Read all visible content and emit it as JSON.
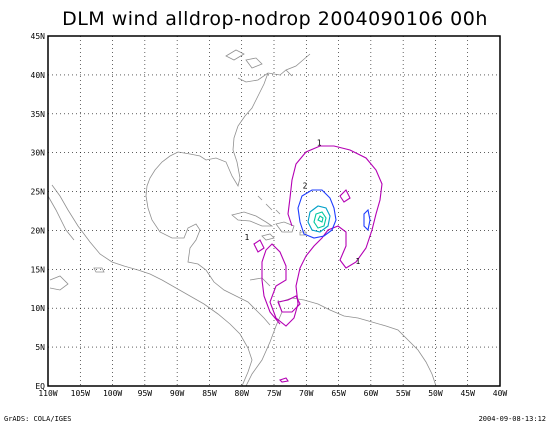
{
  "title": "DLM wind alldrop-nodrop 2004090106 00h",
  "footer": {
    "left": "GrADS: COLA/IGES",
    "right": "2004-09-08-13:12"
  },
  "axes": {
    "x_tick_labels": [
      "110W",
      "105W",
      "100W",
      "95W",
      "90W",
      "85W",
      "80W",
      "75W",
      "70W",
      "65W",
      "60W",
      "55W",
      "50W",
      "45W",
      "40W"
    ],
    "y_tick_labels": [
      "EQ",
      "5N",
      "10N",
      "15N",
      "20N",
      "25N",
      "30N",
      "35N",
      "40N",
      "45N"
    ],
    "lon_range": [
      -110,
      -40
    ],
    "lat_range": [
      0,
      45
    ]
  },
  "contour_labels": [
    {
      "text": "1",
      "lon": -68.0,
      "lat": 30.9,
      "color": "magenta"
    },
    {
      "text": "1",
      "lon": -79.2,
      "lat": 18.8,
      "color": "magenta"
    },
    {
      "text": "1",
      "lon": -62.0,
      "lat": 15.7,
      "color": "magenta"
    },
    {
      "text": "2",
      "lon": -70.2,
      "lat": 25.4,
      "color": "blue"
    }
  ],
  "colors": {
    "coast": "#909090",
    "contour_1": "#b400b4",
    "contour_2": "#1e3cff",
    "contour_3": "#00a0c8",
    "contour_4": "#00c8a0",
    "grid": "#000000"
  }
}
